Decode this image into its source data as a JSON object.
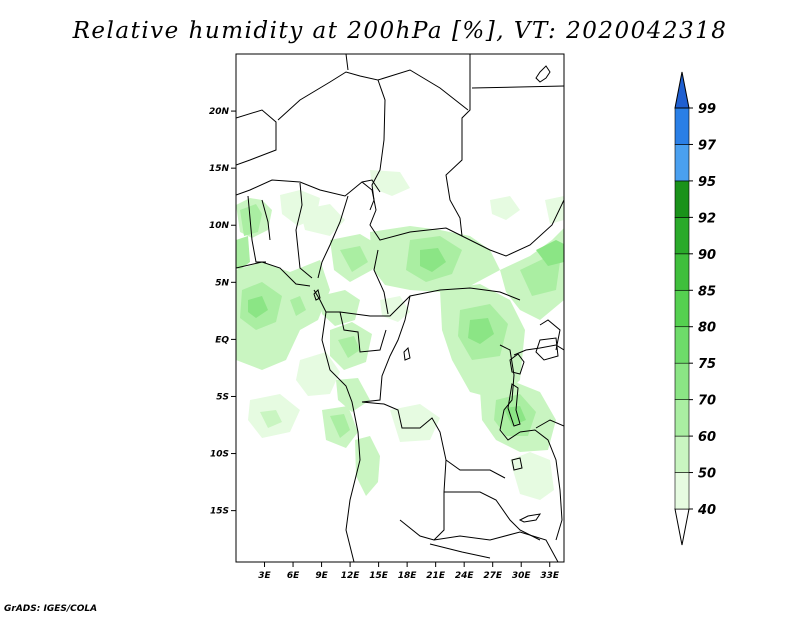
{
  "title": "Relative humidity at 200hPa [%], VT: 2020042318",
  "credit": "GrADS: IGES/COLA",
  "map": {
    "lat_labels": [
      "20N",
      "15N",
      "10N",
      "5N",
      "EQ",
      "5S",
      "10S",
      "15S"
    ],
    "lat_values": [
      20,
      15,
      10,
      5,
      0,
      -5,
      -10,
      -15
    ],
    "lon_labels": [
      "3E",
      "6E",
      "9E",
      "12E",
      "15E",
      "18E",
      "21E",
      "24E",
      "27E",
      "30E",
      "33E"
    ],
    "lon_values": [
      3,
      6,
      9,
      12,
      15,
      18,
      21,
      24,
      27,
      30,
      33
    ],
    "lon_range": [
      0,
      34.5
    ],
    "lat_range": [
      -19.5,
      25
    ]
  },
  "colorbar": {
    "labels": [
      "40",
      "50",
      "60",
      "70",
      "75",
      "80",
      "85",
      "90",
      "92",
      "95",
      "97",
      "99"
    ],
    "colors": [
      "#ffffff",
      "#e6fbe1",
      "#c9f5c1",
      "#aaeea2",
      "#8be585",
      "#6edb6a",
      "#55d050",
      "#3fbf3c",
      "#2aaa2a",
      "#1a921a",
      "#4aa0f0",
      "#2a7fe6",
      "#1f5fd0"
    ]
  }
}
